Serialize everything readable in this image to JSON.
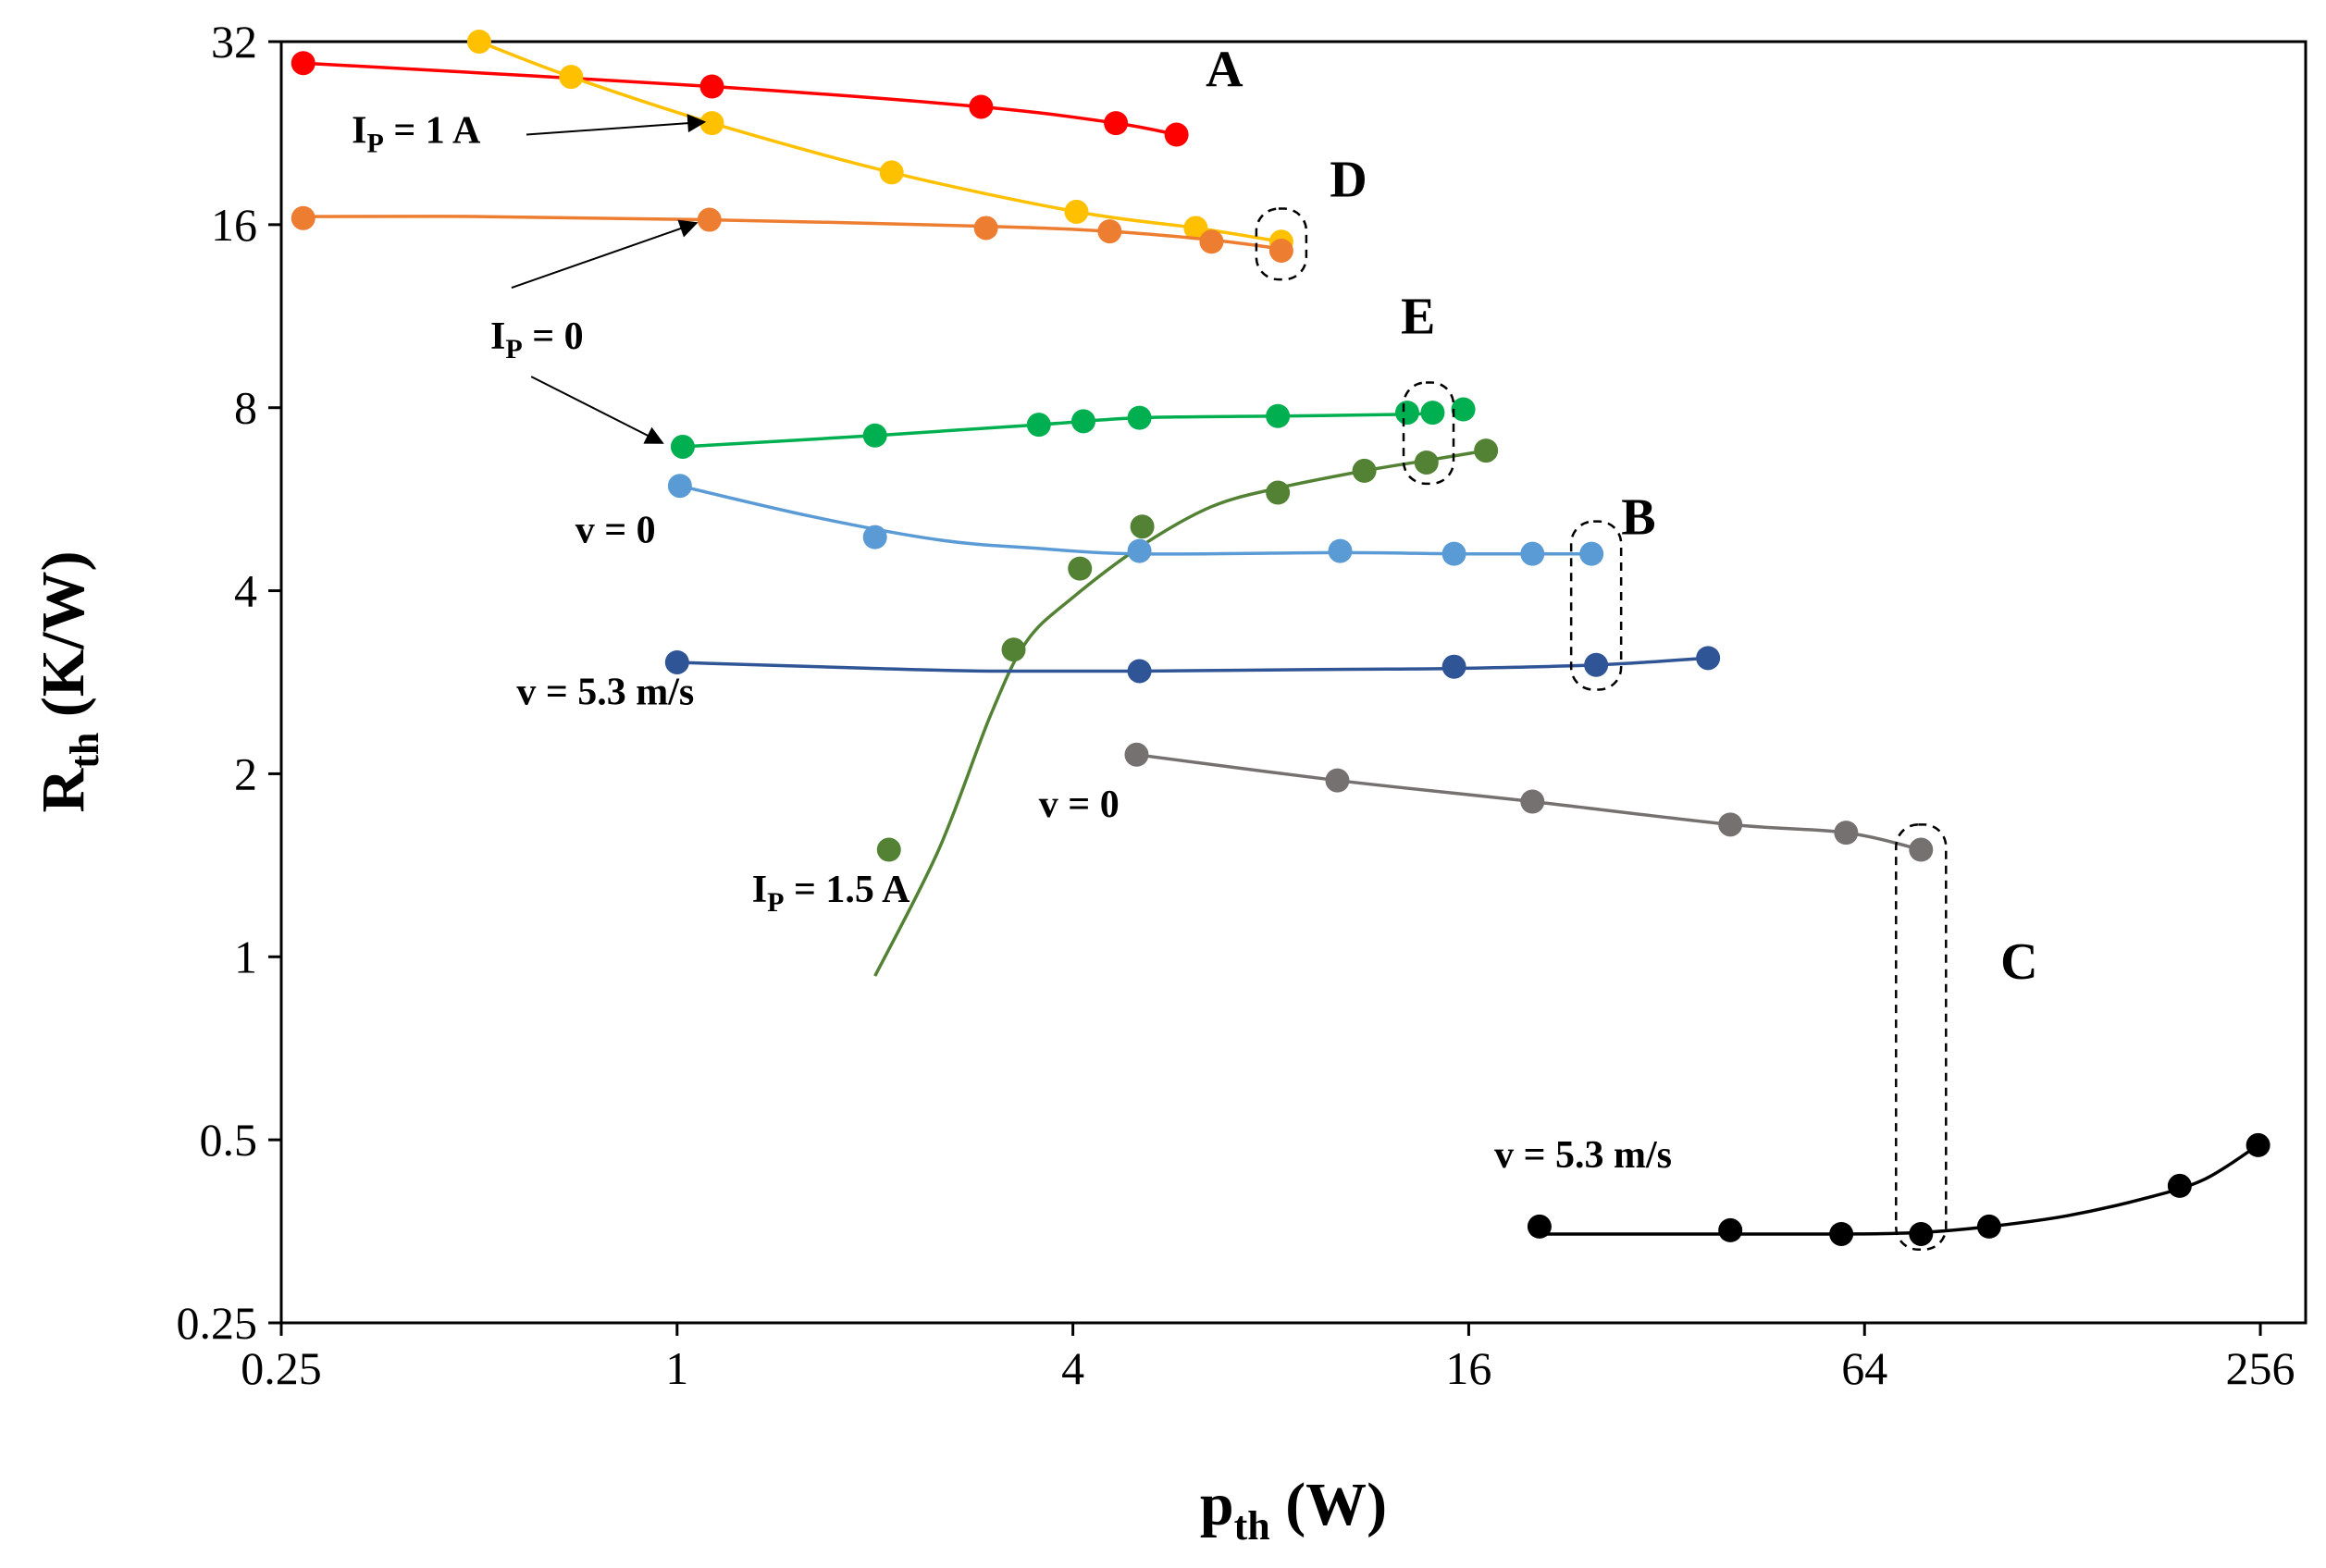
{
  "chart_data": {
    "type": "scatter",
    "title": "",
    "xlabel": {
      "main": "p",
      "sub": "th",
      "unit": " (W)"
    },
    "ylabel": {
      "main": "R",
      "sub": "th",
      "unit": " (K/W)"
    },
    "x_scale": "log2",
    "y_scale": "log2",
    "xlim": [
      0.25,
      300
    ],
    "ylim": [
      0.25,
      32
    ],
    "xticks": [
      0.25,
      1,
      4,
      16,
      64,
      256
    ],
    "xtick_labels": [
      "0.25",
      "1",
      "4",
      "16",
      "64",
      "256"
    ],
    "yticks": [
      0.25,
      0.5,
      1,
      2,
      4,
      8,
      16,
      32
    ],
    "ytick_labels": [
      "0.25",
      "0.5",
      "1",
      "2",
      "4",
      "8",
      "16",
      "32"
    ],
    "grid": false,
    "legend": "none",
    "series": [
      {
        "name": "A red",
        "color": "#ff0000",
        "x": [
          0.27,
          1.13,
          2.9,
          4.65,
          5.75
        ],
        "y": [
          29.5,
          27.0,
          25.0,
          23.5,
          22.5
        ],
        "curve_x": [
          0.27,
          1.13,
          2.9,
          4.65,
          5.75
        ],
        "curve_y": [
          29.5,
          27.0,
          25.0,
          23.5,
          22.5
        ]
      },
      {
        "name": "D yellow",
        "color": "#ffc000",
        "x": [
          0.5,
          0.69,
          1.13,
          2.12,
          4.05,
          6.15,
          8.3
        ],
        "y": [
          32.0,
          28.0,
          23.5,
          19.5,
          16.8,
          15.8,
          15.0
        ],
        "curve_x": [
          0.5,
          0.69,
          1.13,
          2.12,
          4.05,
          6.15,
          8.3
        ],
        "curve_y": [
          32.0,
          28.0,
          23.5,
          19.5,
          16.8,
          15.8,
          15.0
        ]
      },
      {
        "name": "D orange",
        "color": "#ed7d31",
        "x": [
          0.27,
          1.12,
          2.95,
          4.55,
          6.5,
          8.3
        ],
        "y": [
          16.4,
          16.3,
          15.8,
          15.6,
          15.0,
          14.5
        ],
        "curve_x": [
          0.27,
          0.5,
          1.12,
          2.95,
          4.55,
          6.5,
          8.3
        ],
        "curve_y": [
          16.5,
          16.5,
          16.3,
          15.9,
          15.6,
          15.1,
          14.6
        ]
      },
      {
        "name": "E green",
        "color": "#00b050",
        "x": [
          1.02,
          2.0,
          3.55,
          4.15,
          5.05,
          8.2,
          12.9,
          14.1,
          15.7
        ],
        "y": [
          6.9,
          7.2,
          7.5,
          7.6,
          7.7,
          7.75,
          7.85,
          7.85,
          7.95
        ],
        "curve_x": [
          1.02,
          2.0,
          3.55,
          5.05,
          8.2,
          12.9,
          14.1
        ],
        "curve_y": [
          6.9,
          7.2,
          7.5,
          7.7,
          7.75,
          7.8,
          7.85
        ]
      },
      {
        "name": "E olive (Ip = 1.5 A)",
        "color": "#548235",
        "x": [
          2.1,
          3.25,
          4.1,
          5.1,
          8.2,
          11.1,
          13.8,
          17.0
        ],
        "y": [
          1.5,
          3.2,
          4.35,
          5.1,
          5.8,
          6.3,
          6.5,
          6.8
        ],
        "curve_x": [
          2.0,
          2.5,
          3.0,
          3.4,
          4.0,
          5.1,
          6.5,
          8.2,
          11.1,
          13.8,
          17.0
        ],
        "curve_y": [
          0.93,
          1.5,
          2.5,
          3.3,
          3.9,
          4.75,
          5.5,
          5.9,
          6.3,
          6.55,
          6.8
        ]
      },
      {
        "name": "B light blue (v = 0)",
        "color": "#5b9bd5",
        "x": [
          1.01,
          2.0,
          5.05,
          10.2,
          15.2,
          20.0,
          24.6
        ],
        "y": [
          5.95,
          4.9,
          4.65,
          4.65,
          4.6,
          4.6,
          4.6
        ],
        "curve_x": [
          1.01,
          1.6,
          2.5,
          3.5,
          5.05,
          10.2,
          15.2,
          20.0,
          24.6
        ],
        "curve_y": [
          5.95,
          5.3,
          4.85,
          4.7,
          4.6,
          4.62,
          4.6,
          4.6,
          4.6
        ]
      },
      {
        "name": "B dark blue (v = 5.3 m/s)",
        "color": "#2f5597",
        "x": [
          1.0,
          5.05,
          15.2,
          25.0,
          37.0
        ],
        "y": [
          3.05,
          2.95,
          3.0,
          3.02,
          3.1
        ],
        "curve_x": [
          1.0,
          2.0,
          3.0,
          5.05,
          10.0,
          15.2,
          25.0,
          37.0
        ],
        "curve_y": [
          3.05,
          2.98,
          2.95,
          2.95,
          2.97,
          2.98,
          3.02,
          3.1
        ]
      },
      {
        "name": "C gray (v = 0)",
        "color": "#767171",
        "x": [
          5.0,
          10.1,
          20.0,
          40.0,
          60.0,
          78.0
        ],
        "y": [
          2.15,
          1.95,
          1.8,
          1.65,
          1.6,
          1.5
        ],
        "curve_x": [
          5.0,
          10.1,
          20.0,
          40.0,
          60.0,
          78.0
        ],
        "curve_y": [
          2.15,
          1.95,
          1.8,
          1.65,
          1.6,
          1.5
        ]
      },
      {
        "name": "C black (v = 5.3 m/s)",
        "color": "#000000",
        "x": [
          20.5,
          40.0,
          59.0,
          78.0,
          99.0,
          193.0,
          254.0
        ],
        "y": [
          0.36,
          0.355,
          0.35,
          0.35,
          0.36,
          0.42,
          0.49
        ],
        "curve_x": [
          20.5,
          40.0,
          60.0,
          78.0,
          99.0,
          130.0,
          170.0,
          210.0,
          254.0
        ],
        "curve_y": [
          0.35,
          0.35,
          0.35,
          0.352,
          0.36,
          0.375,
          0.4,
          0.43,
          0.49
        ]
      }
    ],
    "annotations": [
      {
        "id": "A",
        "text": "A",
        "x": 6.8,
        "y": 27.0,
        "kind": "letter"
      },
      {
        "id": "D",
        "text": "D",
        "x": 10.5,
        "y": 17.8,
        "kind": "letter"
      },
      {
        "id": "E",
        "text": "E",
        "x": 13.4,
        "y": 10.6,
        "kind": "letter"
      },
      {
        "id": "B",
        "text": "B",
        "x": 29.0,
        "y": 4.95,
        "kind": "letter"
      },
      {
        "id": "C",
        "text": "C",
        "x": 110.0,
        "y": 0.92,
        "kind": "letter"
      },
      {
        "id": "ip1",
        "main": "I",
        "sub": "P",
        "rest": " = 1 A",
        "x": 0.32,
        "y": 21.8,
        "kind": "current"
      },
      {
        "id": "ip0",
        "main": "I",
        "sub": "P",
        "rest": " = 0",
        "x": 0.52,
        "y": 10.0,
        "kind": "current"
      },
      {
        "id": "ip15",
        "main": "I",
        "sub": "P",
        "rest": " = 1.5 A",
        "x": 1.3,
        "y": 1.23,
        "kind": "current"
      },
      {
        "id": "v0a",
        "text": "v = 0",
        "x": 0.7,
        "y": 4.8,
        "kind": "plain"
      },
      {
        "id": "v53a",
        "text": "v = 5.3 m/s",
        "x": 0.57,
        "y": 2.6,
        "kind": "plain"
      },
      {
        "id": "v0b",
        "text": "v = 0",
        "x": 3.55,
        "y": 1.7,
        "kind": "plain"
      },
      {
        "id": "v53b",
        "text": "v = 5.3 m/s",
        "x": 17.5,
        "y": 0.45,
        "kind": "plain"
      }
    ],
    "arrows": [
      {
        "from": [
          0.59,
          22.5
        ],
        "to": [
          1.1,
          23.6
        ]
      },
      {
        "from": [
          0.56,
          12.6
        ],
        "to": [
          1.07,
          16.1
        ]
      },
      {
        "from": [
          0.6,
          9.0
        ],
        "to": [
          0.95,
          7.0
        ]
      }
    ],
    "dashed_groups": [
      {
        "x": 8.3,
        "y_range": [
          13.0,
          17.0
        ]
      },
      {
        "x": 13.9,
        "y_range": [
          6.0,
          8.8
        ]
      },
      {
        "x": 25.0,
        "y_range": [
          2.75,
          5.2
        ]
      },
      {
        "x": 78.0,
        "y_range": [
          0.33,
          1.65
        ]
      }
    ]
  }
}
